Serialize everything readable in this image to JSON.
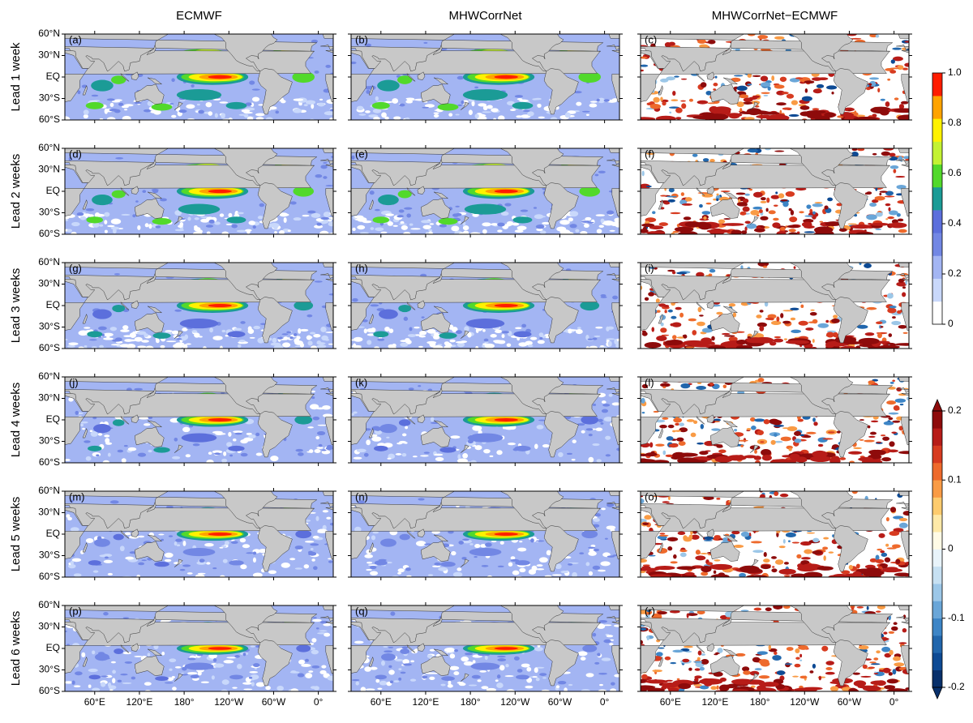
{
  "column_titles": [
    "ECMWF",
    "MHWCorrNet",
    "MHWCorrNet−ECMWF"
  ],
  "row_labels": [
    "Lead 1 week",
    "Lead 2 weeks",
    "Lead 3 weeks",
    "Lead 4 weeks",
    "Lead 5 weeks",
    "Lead 6 weeks"
  ],
  "panel_labels": [
    "(a)",
    "(b)",
    "(c)",
    "(d)",
    "(e)",
    "(f)",
    "(g)",
    "(h)",
    "(i)",
    "(j)",
    "(k)",
    "(l)",
    "(m)",
    "(n)",
    "(o)",
    "(p)",
    "(q)",
    "(r)"
  ],
  "xlim": [
    20,
    380
  ],
  "ylim": [
    -60,
    60
  ],
  "lat_ticks": [
    {
      "value": 60,
      "label": "60°N"
    },
    {
      "value": 30,
      "label": "30°N"
    },
    {
      "value": 0,
      "label": "EQ"
    },
    {
      "value": -30,
      "label": "30°S"
    },
    {
      "value": -60,
      "label": "60°S"
    }
  ],
  "lon_ticks": [
    {
      "value": 60,
      "label": "60°E"
    },
    {
      "value": 120,
      "label": "120°E"
    },
    {
      "value": 180,
      "label": "180°"
    },
    {
      "value": 240,
      "label": "120°W"
    },
    {
      "value": 300,
      "label": "60°W"
    },
    {
      "value": 360,
      "label": "0°"
    }
  ],
  "land_color": "#c8c8c8",
  "colorbars": [
    {
      "lim": [
        0,
        1
      ],
      "ticks": [
        0,
        0.2,
        0.4,
        0.6,
        0.8,
        {
          "value": 1,
          "label": "1.0"
        }
      ],
      "colors": [
        "#ffffff",
        "#c9d8fb",
        "#a3b5f3",
        "#7287e4",
        "#5c6fdc",
        "#1b9b96",
        "#52d92b",
        "#c3f233",
        "#fff200",
        "#ffa300",
        "#ff1c00"
      ]
    },
    {
      "lim": [
        -0.2,
        0.2
      ],
      "ticks": [
        -0.2,
        -0.1,
        0,
        0.1,
        0.2
      ],
      "extend": "both",
      "colors": [
        "#08306b",
        "#0d4a94",
        "#2166ac",
        "#3d85c6",
        "#6aa6d8",
        "#9cc7e8",
        "#c6e0f2",
        "#e8f3fa",
        "#fffbe6",
        "#fee9a8",
        "#fdcb6e",
        "#f99b45",
        "#ee6a2c",
        "#d73b20",
        "#b71c18",
        "#8e0b0b"
      ]
    }
  ]
}
